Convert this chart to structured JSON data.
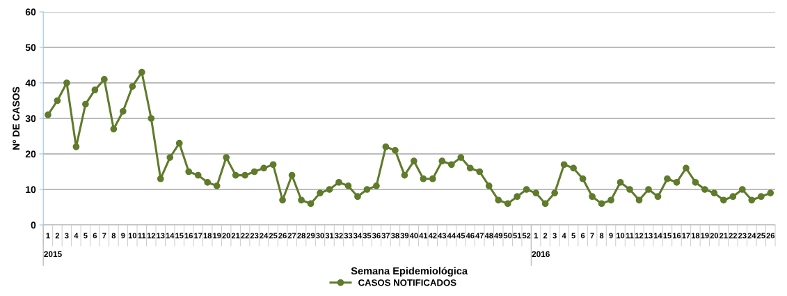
{
  "chart_data": {
    "type": "line",
    "xlabel": "Semana Epidemiológica",
    "ylabel": "Nº DE CASOS",
    "categories": [
      "1",
      "2",
      "3",
      "4",
      "5",
      "6",
      "7",
      "8",
      "9",
      "10",
      "11",
      "12",
      "13",
      "14",
      "15",
      "16",
      "17",
      "18",
      "19",
      "20",
      "21",
      "22",
      "23",
      "24",
      "25",
      "26",
      "27",
      "28",
      "29",
      "30",
      "31",
      "32",
      "33",
      "34",
      "35",
      "36",
      "37",
      "38",
      "39",
      "40",
      "41",
      "42",
      "43",
      "44",
      "45",
      "46",
      "47",
      "48",
      "49",
      "50",
      "51",
      "52",
      "1",
      "2",
      "3",
      "4",
      "5",
      "6",
      "7",
      "8",
      "9",
      "10",
      "11",
      "12",
      "13",
      "14",
      "15",
      "16",
      "17",
      "18",
      "19",
      "20",
      "21",
      "22",
      "23",
      "24",
      "25",
      "26"
    ],
    "series": [
      {
        "name": "CASOS NOTIFICADOS",
        "color": "#5f7b2b",
        "values": [
          31,
          35,
          40,
          22,
          34,
          38,
          41,
          27,
          32,
          39,
          43,
          30,
          13,
          19,
          23,
          15,
          14,
          12,
          11,
          19,
          14,
          14,
          15,
          16,
          17,
          7,
          14,
          7,
          6,
          9,
          10,
          12,
          11,
          8,
          10,
          11,
          22,
          21,
          14,
          18,
          13,
          13,
          18,
          17,
          19,
          16,
          15,
          11,
          7,
          6,
          8,
          10,
          9,
          6,
          9,
          17,
          16,
          13,
          8,
          6,
          7,
          12,
          10,
          7,
          10,
          8,
          13,
          12,
          16,
          12,
          10,
          9,
          7,
          8,
          10,
          7,
          8,
          9
        ]
      }
    ],
    "ylim": [
      0,
      60
    ],
    "yticks": [
      0,
      10,
      20,
      30,
      40,
      50,
      60
    ],
    "annotations": [
      "2015",
      "2016"
    ],
    "grid": "y",
    "legend": "bottom",
    "marker": "circle",
    "line_style": "solid"
  }
}
